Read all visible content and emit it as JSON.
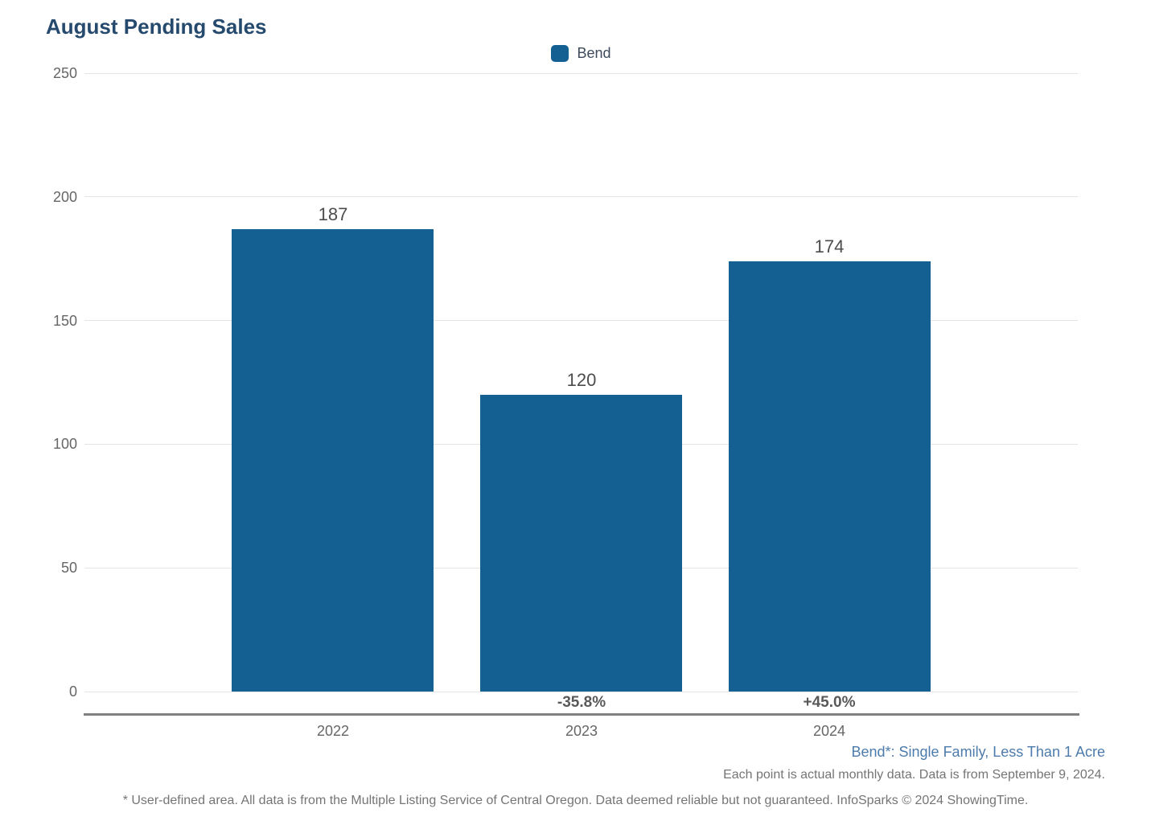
{
  "page": {
    "title": "August Pending Sales"
  },
  "legend": {
    "items": [
      {
        "label": "Bend",
        "color": "#156093"
      }
    ]
  },
  "chart_data": {
    "type": "bar",
    "title": "August Pending Sales",
    "categories": [
      "2022",
      "2023",
      "2024"
    ],
    "series": [
      {
        "name": "Bend",
        "values": [
          187,
          120,
          174
        ]
      }
    ],
    "value_labels": [
      "187",
      "120",
      "174"
    ],
    "change_labels": [
      "",
      "-35.8%",
      "+45.0%"
    ],
    "ylim": [
      0,
      250
    ],
    "yticks": [
      0,
      50,
      100,
      150,
      200,
      250
    ],
    "grid": true,
    "legend_position": "top-center",
    "bar_color": "#156093"
  },
  "notes": {
    "series_definition": "Bend*: Single Family, Less Than 1 Acre",
    "data_note": "Each point is actual monthly data. Data is from September 9, 2024.",
    "disclaimer": "* User-defined area. All data is from the Multiple Listing Service of Central Oregon. Data deemed reliable but not guaranteed. InfoSparks © 2024 ShowingTime."
  },
  "colors": {
    "bar": "#156093",
    "title": "#254a6e",
    "note_blue": "#4d7bab",
    "axis_line": "#808080"
  }
}
